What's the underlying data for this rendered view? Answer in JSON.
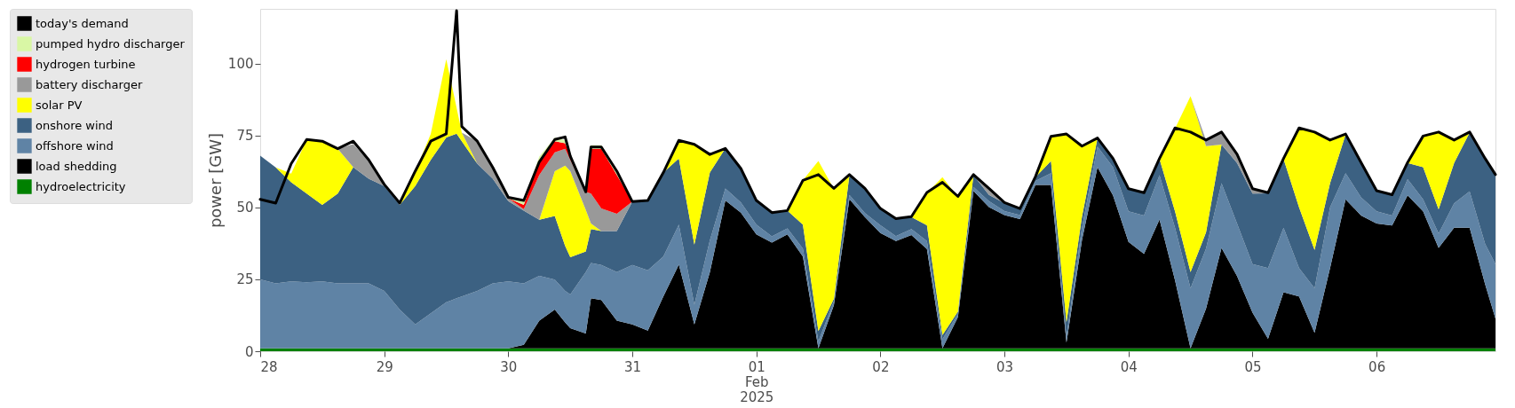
{
  "chart_data": {
    "type": "area",
    "stacked": true,
    "ylabel": "power [GW]",
    "legend": "left",
    "x": [
      "2025-01-28T00:00",
      "2025-01-28T03:00",
      "2025-01-28T06:00",
      "2025-01-28T09:00",
      "2025-01-28T12:00",
      "2025-01-28T15:00",
      "2025-01-28T18:00",
      "2025-01-28T21:00",
      "2025-01-29T00:00",
      "2025-01-29T03:00",
      "2025-01-29T06:00",
      "2025-01-29T09:00",
      "2025-01-29T12:00",
      "2025-01-29T14:00",
      "2025-01-29T15:00",
      "2025-01-29T18:00",
      "2025-01-29T21:00",
      "2025-01-30T00:00",
      "2025-01-30T03:00",
      "2025-01-30T06:00",
      "2025-01-30T09:00",
      "2025-01-30T11:00",
      "2025-01-30T12:00",
      "2025-01-30T15:00",
      "2025-01-30T16:00",
      "2025-01-30T18:00",
      "2025-01-30T21:00",
      "2025-01-31T00:00",
      "2025-01-31T03:00",
      "2025-01-31T06:00",
      "2025-01-31T09:00",
      "2025-01-31T12:00",
      "2025-01-31T15:00",
      "2025-01-31T18:00",
      "2025-01-31T21:00",
      "2025-02-01T00:00",
      "2025-02-01T03:00",
      "2025-02-01T06:00",
      "2025-02-01T09:00",
      "2025-02-01T12:00",
      "2025-02-01T15:00",
      "2025-02-01T18:00",
      "2025-02-01T21:00",
      "2025-02-02T00:00",
      "2025-02-02T03:00",
      "2025-02-02T06:00",
      "2025-02-02T09:00",
      "2025-02-02T12:00",
      "2025-02-02T15:00",
      "2025-02-02T18:00",
      "2025-02-02T21:00",
      "2025-02-03T00:00",
      "2025-02-03T03:00",
      "2025-02-03T06:00",
      "2025-02-03T09:00",
      "2025-02-03T12:00",
      "2025-02-03T15:00",
      "2025-02-03T18:00",
      "2025-02-03T21:00",
      "2025-02-04T00:00",
      "2025-02-04T03:00",
      "2025-02-04T06:00",
      "2025-02-04T09:00",
      "2025-02-04T12:00",
      "2025-02-04T15:00",
      "2025-02-04T18:00",
      "2025-02-04T21:00",
      "2025-02-05T00:00",
      "2025-02-05T03:00",
      "2025-02-05T06:00",
      "2025-02-05T09:00",
      "2025-02-05T12:00",
      "2025-02-05T15:00",
      "2025-02-05T18:00",
      "2025-02-05T21:00",
      "2025-02-06T00:00",
      "2025-02-06T03:00",
      "2025-02-06T06:00",
      "2025-02-06T09:00",
      "2025-02-06T12:00",
      "2025-02-06T15:00",
      "2025-02-06T18:00",
      "2025-02-06T21:00",
      "2025-02-06T23:00"
    ],
    "xlim": [
      "2025-01-28T00:00",
      "2025-02-06T23:00"
    ],
    "xticks": [
      {
        "value": "2025-01-28",
        "label": "28"
      },
      {
        "value": "2025-01-29",
        "label": "29"
      },
      {
        "value": "2025-01-30",
        "label": "30"
      },
      {
        "value": "2025-01-31",
        "label": "31"
      },
      {
        "value": "2025-02-01",
        "label": "01\nFeb\n2025"
      },
      {
        "value": "2025-02-02",
        "label": "02"
      },
      {
        "value": "2025-02-03",
        "label": "03"
      },
      {
        "value": "2025-02-04",
        "label": "04"
      },
      {
        "value": "2025-02-05",
        "label": "05"
      },
      {
        "value": "2025-02-06",
        "label": "06"
      }
    ],
    "ylim": [
      0,
      119
    ],
    "yticks": [
      0,
      25,
      50,
      75,
      100
    ],
    "series": [
      {
        "name": "hydroelectricity",
        "color": "#008000",
        "values": [
          1,
          1,
          1,
          1,
          1,
          1,
          1,
          1,
          1,
          1,
          1,
          1,
          1,
          1,
          1,
          1,
          1,
          1,
          1,
          1,
          1,
          1,
          1,
          1,
          1,
          1,
          1,
          1,
          1,
          1,
          1,
          1,
          1,
          1,
          1,
          1,
          1,
          1,
          1,
          1,
          1,
          1,
          1,
          1,
          1,
          1,
          1,
          1,
          1,
          1,
          1,
          1,
          1,
          1,
          1,
          1,
          1,
          1,
          1,
          1,
          1,
          1,
          1,
          1,
          1,
          1,
          1,
          1,
          1,
          1,
          1,
          1,
          1,
          1,
          1,
          1,
          1,
          1,
          1,
          1,
          1,
          1,
          1,
          1
        ]
      },
      {
        "name": "load shedding",
        "color": "#000000",
        "values": [
          0,
          0,
          0,
          0,
          0,
          0,
          0,
          0,
          0,
          0,
          0,
          0,
          0,
          0,
          0,
          0,
          0,
          0,
          1.2,
          9.6,
          13.5,
          9,
          7,
          5.2,
          17.4,
          16.8,
          9.6,
          8.3,
          6.2,
          18,
          29.1,
          8.3,
          26.4,
          51.4,
          47.2,
          39.6,
          36.8,
          39.6,
          31.9,
          0,
          15,
          51.9,
          45.6,
          40.1,
          37.3,
          39.4,
          34.5,
          0,
          10.9,
          54.7,
          49.1,
          46.3,
          44.9,
          56.8,
          56.8,
          2,
          37.7,
          63,
          53.2,
          37,
          32.8,
          44.8,
          23.7,
          0,
          13.8,
          34.9,
          25.1,
          12.4,
          3.3,
          19.5,
          18,
          5.4,
          27.9,
          51.8,
          46.2,
          43.4,
          42.7,
          53.2,
          47.6,
          34.9,
          41.9,
          41.9,
          22.3,
          10.3
        ]
      },
      {
        "name": "offshore wind",
        "color": "#5f83a5",
        "values": [
          24,
          22.6,
          23.3,
          23,
          23.3,
          22.6,
          22.6,
          22.6,
          20,
          13.5,
          8.3,
          12.2,
          16,
          17.4,
          18,
          20,
          22.6,
          23.3,
          21.4,
          15.6,
          10.4,
          11,
          11.7,
          21.3,
          12.3,
          12.2,
          16.9,
          20.7,
          20.9,
          13.9,
          13.9,
          6.9,
          11.1,
          4.2,
          3.5,
          3.4,
          2.1,
          2.1,
          2.8,
          2.5,
          1.4,
          1.4,
          1.4,
          2.7,
          1.7,
          2.1,
          2.8,
          3.2,
          1.1,
          1.4,
          2.1,
          1.4,
          1.4,
          1.4,
          4.1,
          2,
          4.3,
          7.1,
          9.8,
          10.6,
          13.4,
          15.4,
          18.2,
          20.9,
          20.9,
          22.5,
          18.3,
          16.9,
          24.6,
          22.4,
          9.9,
          15.5,
          21.1,
          9.1,
          6.3,
          4.2,
          3.5,
          5.6,
          4.2,
          5,
          8.5,
          12.7,
          14,
          19
        ]
      },
      {
        "name": "onshore wind",
        "color": "#3c6182",
        "values": [
          43,
          40.3,
          34.4,
          30.8,
          26.6,
          31.2,
          40.4,
          36.4,
          36.4,
          36.4,
          48.1,
          53.3,
          57.3,
          57.2,
          54,
          44.2,
          36.4,
          27.9,
          25.3,
          19.5,
          22.1,
          15.6,
          13,
          7.2,
          11.8,
          11.8,
          14.3,
          22,
          24.3,
          29.2,
          23,
          20.9,
          23.6,
          13.9,
          11.8,
          8.4,
          8.3,
          6.2,
          8.3,
          3.5,
          0.9,
          6.9,
          8.4,
          5.6,
          5.9,
          4.1,
          5.5,
          1.4,
          0.8,
          4.1,
          2.1,
          2.8,
          2.1,
          1.3,
          4.2,
          5.1,
          3.8,
          3,
          2.8,
          7.7,
          7.7,
          5.6,
          5.7,
          5.6,
          5.6,
          13.4,
          21,
          24.5,
          26,
          23.9,
          21.1,
          13.3,
          8.4,
          13.4,
          11.9,
          7,
          7,
          5.6,
          11.2,
          8.4,
          14,
          20.4,
          29.5,
          31.1
        ]
      },
      {
        "name": "solar PV",
        "color": "#ffff00",
        "values": [
          0,
          0,
          3,
          18.8,
          22,
          15.6,
          0,
          0,
          0,
          0,
          5,
          9,
          27.2,
          9,
          3,
          0,
          0,
          0,
          0,
          0,
          15.6,
          27.9,
          29.9,
          14.4,
          1.9,
          0,
          0,
          0,
          0,
          0,
          6.3,
          34.8,
          6.3,
          0,
          0,
          0,
          0,
          0,
          15.4,
          59.1,
          38.1,
          0,
          0,
          0,
          0,
          0,
          11.2,
          54.9,
          39.8,
          0,
          0,
          0,
          0,
          0,
          8.4,
          65.4,
          24.3,
          0,
          0,
          0,
          0,
          0,
          28.8,
          61.1,
          30,
          0,
          0,
          0,
          0,
          0,
          27.4,
          40.8,
          14.8,
          0,
          0,
          0,
          0,
          0,
          10.6,
          26.7,
          7.8,
          0,
          0,
          0
        ]
      },
      {
        "name": "battery discharger",
        "color": "#999999",
        "values": [
          0,
          0,
          0,
          0,
          0,
          0,
          8,
          6,
          0,
          0,
          0,
          0,
          0,
          0,
          0,
          7.8,
          3.9,
          1,
          0.5,
          15.6,
          6.5,
          5.9,
          3.9,
          6.3,
          10.4,
          7.8,
          6,
          0,
          0,
          0,
          0,
          0,
          0,
          0,
          0,
          0,
          0,
          0,
          0,
          0,
          0,
          0,
          0,
          0,
          0,
          0,
          0,
          0,
          0,
          0,
          2.1,
          0,
          0,
          0,
          0,
          0,
          0,
          0,
          0,
          0,
          0,
          0,
          0,
          0,
          2,
          4.2,
          2.9,
          1.5,
          0,
          0,
          0,
          0,
          0,
          0,
          0,
          0,
          0,
          0,
          0,
          0,
          0,
          0,
          0,
          0
        ]
      },
      {
        "name": "hydrogen turbine",
        "color": "#ff0000",
        "values": [
          0,
          0,
          0,
          0,
          0,
          0,
          0,
          0,
          0,
          0,
          0,
          0,
          0,
          0,
          0,
          0,
          0,
          0,
          1.5,
          5.2,
          3.9,
          1.9,
          1.3,
          0,
          15.6,
          20.8,
          13.5,
          0,
          0,
          0,
          0,
          0,
          0,
          0,
          0,
          0,
          0,
          0,
          0,
          0,
          0,
          0,
          0,
          0,
          0,
          0,
          0,
          0,
          0,
          0,
          0,
          0,
          0,
          0,
          0,
          0,
          0,
          0,
          0,
          0,
          0,
          0,
          0,
          0,
          0,
          0,
          0,
          0,
          0,
          0,
          0,
          0,
          0,
          0,
          0,
          0,
          0,
          0,
          0,
          0,
          0,
          0,
          0,
          0
        ]
      },
      {
        "name": "pumped hydro discharger",
        "color": "#d9f7a5",
        "values": [
          null,
          null,
          null,
          null,
          null,
          null,
          null,
          null,
          null,
          null,
          null,
          null,
          null,
          null,
          null,
          null,
          null,
          0,
          1.5,
          1.2,
          1.2,
          1,
          0,
          0,
          1.2,
          1.2,
          1.2,
          0,
          null,
          null,
          null,
          null,
          null,
          null,
          null,
          null,
          null,
          null,
          null,
          null,
          null,
          null,
          null,
          null,
          null,
          null,
          null,
          null,
          null,
          null,
          null,
          null,
          null,
          null,
          null,
          null,
          null,
          null,
          null,
          null,
          null,
          null,
          null,
          null,
          null,
          null,
          null,
          null,
          null,
          null,
          null,
          null,
          null,
          null,
          null,
          null,
          null,
          null,
          null,
          null,
          null,
          null,
          null,
          null
        ]
      },
      {
        "name": "today's demand",
        "type": "line",
        "color": "#000000",
        "values": [
          52.8,
          51.5,
          65.2,
          73.6,
          73,
          70.4,
          73,
          66.5,
          58,
          51.5,
          62.6,
          73,
          75.6,
          118.4,
          78.1,
          73,
          63.9,
          53.5,
          52.4,
          65.8,
          73.6,
          74.5,
          67.8,
          55.4,
          71,
          71,
          62.6,
          52,
          52.4,
          62.1,
          73.3,
          71.9,
          68.4,
          70.5,
          63.5,
          52.4,
          48.2,
          48.9,
          59.4,
          61.4,
          56.6,
          61.4,
          56.6,
          49.6,
          46.1,
          46.8,
          55.2,
          58.7,
          53.8,
          61.4,
          56.6,
          51.7,
          49.6,
          60.7,
          74.7,
          75.5,
          71.3,
          74.1,
          67,
          56.5,
          55.1,
          67,
          77.6,
          76.2,
          73.4,
          76.2,
          68.5,
          56.5,
          55.1,
          67,
          77.6,
          76.2,
          73.4,
          75.5,
          65.6,
          55.8,
          54.4,
          65.6,
          74.8,
          76.2,
          73.4,
          76.2,
          67,
          61.4
        ]
      }
    ]
  }
}
